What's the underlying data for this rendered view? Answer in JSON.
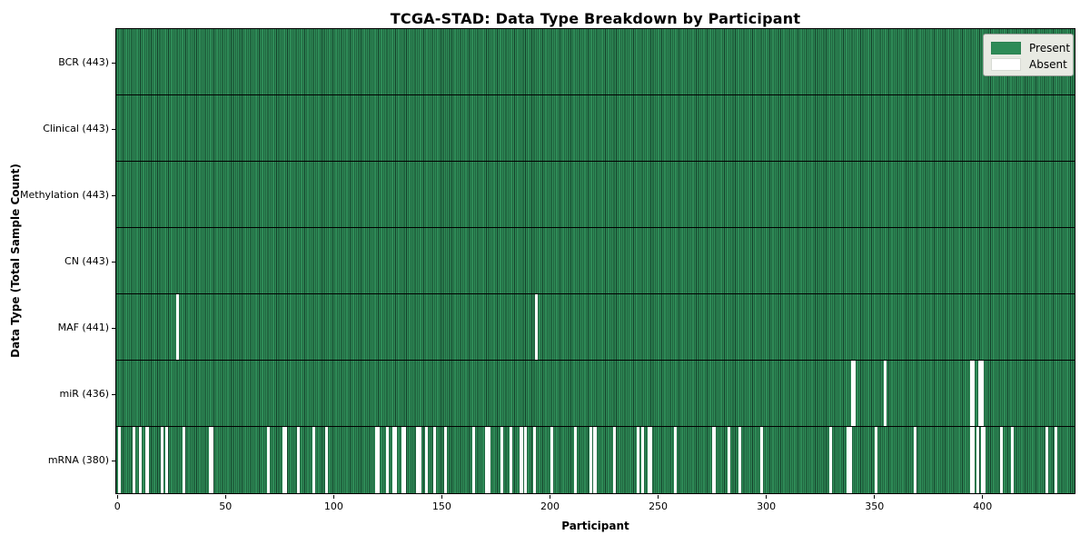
{
  "chart_data": {
    "type": "heatmap",
    "title": "TCGA-STAD: Data Type Breakdown by Participant",
    "xlabel": "Participant",
    "ylabel": "Data Type (Total Sample Count)",
    "n_participants": 443,
    "x_ticks": [
      0,
      50,
      100,
      150,
      200,
      250,
      300,
      350,
      400
    ],
    "legend": {
      "position": "upper right",
      "entries": [
        {
          "label": "Present",
          "color": "#2e8b57"
        },
        {
          "label": "Absent",
          "color": "#ffffff"
        }
      ]
    },
    "colors": {
      "present": "#2e8b57",
      "bar_edge": "#14402a",
      "absent": "#ffffff"
    },
    "rows": [
      {
        "label": "BCR (443)",
        "present_count": 443,
        "absent_count": 0,
        "absent": []
      },
      {
        "label": "Clinical (443)",
        "present_count": 443,
        "absent_count": 0,
        "absent": []
      },
      {
        "label": "Methylation (443)",
        "present_count": 443,
        "absent_count": 0,
        "absent": []
      },
      {
        "label": "CN (443)",
        "present_count": 443,
        "absent_count": 0,
        "absent": []
      },
      {
        "label": "MAF (441)",
        "present_count": 441,
        "absent_count": 2,
        "absent": [
          28,
          194
        ]
      },
      {
        "label": "miR (436)",
        "present_count": 436,
        "absent_count": 7,
        "absent": [
          340,
          341,
          355,
          395,
          396,
          399,
          400
        ]
      },
      {
        "label": "mRNA (380)",
        "present_count": 380,
        "absent_count": 63,
        "absent": [
          1,
          8,
          11,
          14,
          21,
          23,
          31,
          43,
          44,
          70,
          77,
          78,
          84,
          91,
          97,
          120,
          121,
          125,
          128,
          129,
          132,
          133,
          139,
          140,
          143,
          147,
          152,
          165,
          171,
          172,
          178,
          182,
          187,
          189,
          193,
          201,
          212,
          219,
          221,
          230,
          241,
          243,
          246,
          247,
          258,
          276,
          283,
          288,
          298,
          330,
          338,
          339,
          351,
          369,
          395,
          396,
          398,
          400,
          401,
          409,
          414,
          430,
          434
        ]
      }
    ]
  }
}
